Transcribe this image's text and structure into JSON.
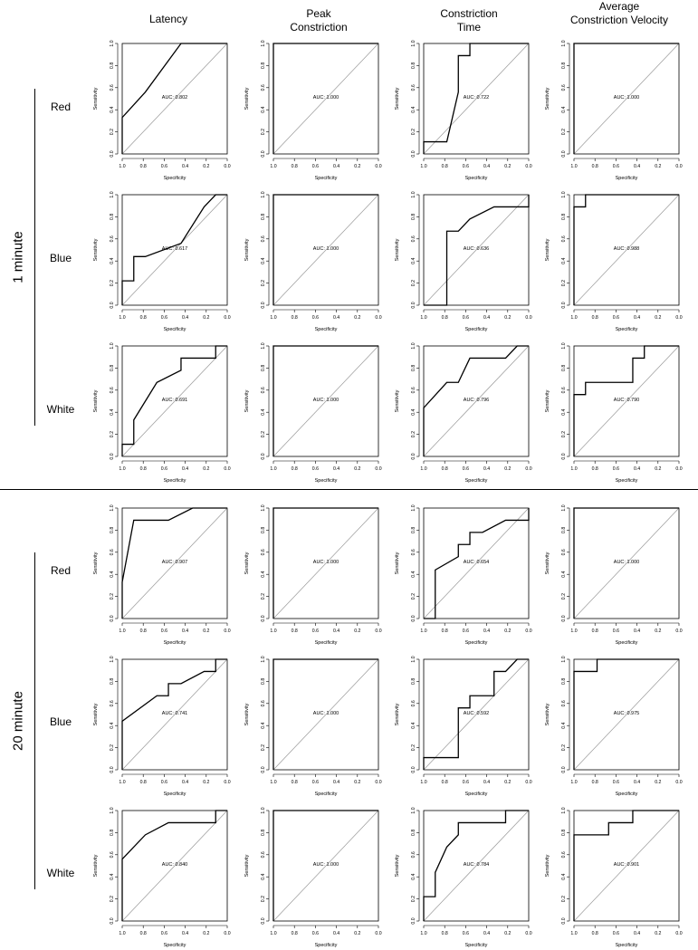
{
  "columns": [
    "Latency",
    "Peak\nConstriction",
    "Constriction\nTime",
    "Average\nConstriction Velocity"
  ],
  "groups": [
    {
      "label": "1 minute",
      "rows": [
        "Red",
        "Blue",
        "White"
      ]
    },
    {
      "label": "20 minute",
      "rows": [
        "Red",
        "Blue",
        "White"
      ]
    }
  ],
  "axis": {
    "xlabel": "Specificity",
    "ylabel": "Sensitivity",
    "xticks": [
      "1.0",
      "0.8",
      "0.6",
      "0.4",
      "0.2",
      "0.0"
    ],
    "yticks": [
      "0.0",
      "0.2",
      "0.4",
      "0.6",
      "0.8",
      "1.0"
    ]
  },
  "chart_data": [
    {
      "type": "line",
      "group": "1 minute",
      "row": "Red",
      "column": "Latency",
      "auc_label": "AUC: 0.802",
      "xlabel": "Specificity",
      "ylabel": "Sensitivity",
      "xlim": [
        1,
        0
      ],
      "ylim": [
        0,
        1
      ],
      "x": [
        1.0,
        1.0,
        0.78,
        0.44,
        0.0
      ],
      "y": [
        0.0,
        0.33,
        0.56,
        1.0,
        1.0
      ]
    },
    {
      "type": "line",
      "group": "1 minute",
      "row": "Red",
      "column": "Peak Constriction",
      "auc_label": "AUC: 1.000",
      "xlabel": "Specificity",
      "ylabel": "Sensitivity",
      "xlim": [
        1,
        0
      ],
      "ylim": [
        0,
        1
      ],
      "x": [
        1.0,
        1.0,
        0.0
      ],
      "y": [
        0.0,
        1.0,
        1.0
      ]
    },
    {
      "type": "line",
      "group": "1 minute",
      "row": "Red",
      "column": "Constriction Time",
      "auc_label": "AUC: 0.722",
      "xlabel": "Specificity",
      "ylabel": "Sensitivity",
      "xlim": [
        1,
        0
      ],
      "ylim": [
        0,
        1
      ],
      "x": [
        1.0,
        1.0,
        0.78,
        0.67,
        0.67,
        0.56,
        0.56,
        0.0
      ],
      "y": [
        0.0,
        0.11,
        0.11,
        0.56,
        0.89,
        0.89,
        1.0,
        1.0
      ]
    },
    {
      "type": "line",
      "group": "1 minute",
      "row": "Red",
      "column": "Average Constriction Velocity",
      "auc_label": "AUC: 1.000",
      "xlabel": "Specificity",
      "ylabel": "Sensitivity",
      "xlim": [
        1,
        0
      ],
      "ylim": [
        0,
        1
      ],
      "x": [
        1.0,
        1.0,
        0.0
      ],
      "y": [
        0.0,
        1.0,
        1.0
      ]
    },
    {
      "type": "line",
      "group": "1 minute",
      "row": "Blue",
      "column": "Latency",
      "auc_label": "AUC: 0.617",
      "xlabel": "Specificity",
      "ylabel": "Sensitivity",
      "xlim": [
        1,
        0
      ],
      "ylim": [
        0,
        1
      ],
      "x": [
        1.0,
        1.0,
        0.89,
        0.89,
        0.78,
        0.44,
        0.22,
        0.11,
        0.0
      ],
      "y": [
        0.0,
        0.22,
        0.22,
        0.44,
        0.44,
        0.56,
        0.89,
        1.0,
        1.0
      ]
    },
    {
      "type": "line",
      "group": "1 minute",
      "row": "Blue",
      "column": "Peak Constriction",
      "auc_label": "AUC: 1.000",
      "xlabel": "Specificity",
      "ylabel": "Sensitivity",
      "xlim": [
        1,
        0
      ],
      "ylim": [
        0,
        1
      ],
      "x": [
        1.0,
        1.0,
        0.0
      ],
      "y": [
        0.0,
        1.0,
        1.0
      ]
    },
    {
      "type": "line",
      "group": "1 minute",
      "row": "Blue",
      "column": "Constriction Time",
      "auc_label": "AUC: 0.636",
      "xlabel": "Specificity",
      "ylabel": "Sensitivity",
      "xlim": [
        1,
        0
      ],
      "ylim": [
        0,
        1
      ],
      "x": [
        1.0,
        0.78,
        0.78,
        0.67,
        0.56,
        0.33,
        0.0,
        0.0
      ],
      "y": [
        0.0,
        0.0,
        0.67,
        0.67,
        0.78,
        0.89,
        0.89,
        1.0
      ]
    },
    {
      "type": "line",
      "group": "1 minute",
      "row": "Blue",
      "column": "Average Constriction Velocity",
      "auc_label": "AUC: 0.988",
      "xlabel": "Specificity",
      "ylabel": "Sensitivity",
      "xlim": [
        1,
        0
      ],
      "ylim": [
        0,
        1
      ],
      "x": [
        1.0,
        1.0,
        0.89,
        0.89,
        0.0
      ],
      "y": [
        0.0,
        0.89,
        0.89,
        1.0,
        1.0
      ]
    },
    {
      "type": "line",
      "group": "1 minute",
      "row": "White",
      "column": "Latency",
      "auc_label": "AUC: 0.691",
      "xlabel": "Specificity",
      "ylabel": "Sensitivity",
      "xlim": [
        1,
        0
      ],
      "ylim": [
        0,
        1
      ],
      "x": [
        1.0,
        1.0,
        0.89,
        0.89,
        0.67,
        0.44,
        0.44,
        0.11,
        0.11,
        0.0
      ],
      "y": [
        0.0,
        0.11,
        0.11,
        0.33,
        0.67,
        0.78,
        0.89,
        0.89,
        1.0,
        1.0
      ]
    },
    {
      "type": "line",
      "group": "1 minute",
      "row": "White",
      "column": "Peak Constriction",
      "auc_label": "AUC: 1.000",
      "xlabel": "Specificity",
      "ylabel": "Sensitivity",
      "xlim": [
        1,
        0
      ],
      "ylim": [
        0,
        1
      ],
      "x": [
        1.0,
        1.0,
        0.0
      ],
      "y": [
        0.0,
        1.0,
        1.0
      ]
    },
    {
      "type": "line",
      "group": "1 minute",
      "row": "White",
      "column": "Constriction Time",
      "auc_label": "AUC: 0.796",
      "xlabel": "Specificity",
      "ylabel": "Sensitivity",
      "xlim": [
        1,
        0
      ],
      "ylim": [
        0,
        1
      ],
      "x": [
        1.0,
        1.0,
        0.78,
        0.67,
        0.56,
        0.22,
        0.11,
        0.0
      ],
      "y": [
        0.0,
        0.44,
        0.67,
        0.67,
        0.89,
        0.89,
        1.0,
        1.0
      ]
    },
    {
      "type": "line",
      "group": "1 minute",
      "row": "White",
      "column": "Average Constriction Velocity",
      "auc_label": "AUC: 0.790",
      "xlabel": "Specificity",
      "ylabel": "Sensitivity",
      "xlim": [
        1,
        0
      ],
      "ylim": [
        0,
        1
      ],
      "x": [
        1.0,
        1.0,
        0.89,
        0.89,
        0.44,
        0.44,
        0.33,
        0.33,
        0.0
      ],
      "y": [
        0.0,
        0.56,
        0.56,
        0.67,
        0.67,
        0.89,
        0.89,
        1.0,
        1.0
      ]
    },
    {
      "type": "line",
      "group": "20 minute",
      "row": "Red",
      "column": "Latency",
      "auc_label": "AUC: 0.907",
      "xlabel": "Specificity",
      "ylabel": "Sensitivity",
      "xlim": [
        1,
        0
      ],
      "ylim": [
        0,
        1
      ],
      "x": [
        1.0,
        1.0,
        0.89,
        0.56,
        0.33,
        0.0
      ],
      "y": [
        0.0,
        0.33,
        0.89,
        0.89,
        1.0,
        1.0
      ]
    },
    {
      "type": "line",
      "group": "20 minute",
      "row": "Red",
      "column": "Peak Constriction",
      "auc_label": "AUC: 1.000",
      "xlabel": "Specificity",
      "ylabel": "Sensitivity",
      "xlim": [
        1,
        0
      ],
      "ylim": [
        0,
        1
      ],
      "x": [
        1.0,
        1.0,
        0.0
      ],
      "y": [
        0.0,
        1.0,
        1.0
      ]
    },
    {
      "type": "line",
      "group": "20 minute",
      "row": "Red",
      "column": "Constriction Time",
      "auc_label": "AUC: 0.654",
      "xlabel": "Specificity",
      "ylabel": "Sensitivity",
      "xlim": [
        1,
        0
      ],
      "ylim": [
        0,
        1
      ],
      "x": [
        1.0,
        0.89,
        0.89,
        0.67,
        0.67,
        0.56,
        0.56,
        0.44,
        0.22,
        0.0,
        0.0
      ],
      "y": [
        0.0,
        0.0,
        0.44,
        0.56,
        0.67,
        0.67,
        0.78,
        0.78,
        0.89,
        0.89,
        1.0
      ]
    },
    {
      "type": "line",
      "group": "20 minute",
      "row": "Red",
      "column": "Average Constriction Velocity",
      "auc_label": "AUC: 1.000",
      "xlabel": "Specificity",
      "ylabel": "Sensitivity",
      "xlim": [
        1,
        0
      ],
      "ylim": [
        0,
        1
      ],
      "x": [
        1.0,
        1.0,
        0.0
      ],
      "y": [
        0.0,
        1.0,
        1.0
      ]
    },
    {
      "type": "line",
      "group": "20 minute",
      "row": "Blue",
      "column": "Latency",
      "auc_label": "AUC: 0.741",
      "xlabel": "Specificity",
      "ylabel": "Sensitivity",
      "xlim": [
        1,
        0
      ],
      "ylim": [
        0,
        1
      ],
      "x": [
        1.0,
        1.0,
        0.67,
        0.56,
        0.56,
        0.44,
        0.22,
        0.11,
        0.11,
        0.0
      ],
      "y": [
        0.0,
        0.44,
        0.67,
        0.67,
        0.78,
        0.78,
        0.89,
        0.89,
        1.0,
        1.0
      ]
    },
    {
      "type": "line",
      "group": "20 minute",
      "row": "Blue",
      "column": "Peak Constriction",
      "auc_label": "AUC: 1.000",
      "xlabel": "Specificity",
      "ylabel": "Sensitivity",
      "xlim": [
        1,
        0
      ],
      "ylim": [
        0,
        1
      ],
      "x": [
        1.0,
        1.0,
        0.0
      ],
      "y": [
        0.0,
        1.0,
        1.0
      ]
    },
    {
      "type": "line",
      "group": "20 minute",
      "row": "Blue",
      "column": "Constriction Time",
      "auc_label": "AUC: 0.592",
      "xlabel": "Specificity",
      "ylabel": "Sensitivity",
      "xlim": [
        1,
        0
      ],
      "ylim": [
        0,
        1
      ],
      "x": [
        1.0,
        1.0,
        0.67,
        0.67,
        0.56,
        0.56,
        0.33,
        0.33,
        0.22,
        0.11,
        0.0
      ],
      "y": [
        0.0,
        0.11,
        0.11,
        0.56,
        0.56,
        0.67,
        0.67,
        0.89,
        0.89,
        1.0,
        1.0
      ]
    },
    {
      "type": "line",
      "group": "20 minute",
      "row": "Blue",
      "column": "Average Constriction Velocity",
      "auc_label": "AUC: 0.975",
      "xlabel": "Specificity",
      "ylabel": "Sensitivity",
      "xlim": [
        1,
        0
      ],
      "ylim": [
        0,
        1
      ],
      "x": [
        1.0,
        1.0,
        0.78,
        0.78,
        0.0
      ],
      "y": [
        0.0,
        0.89,
        0.89,
        1.0,
        1.0
      ]
    },
    {
      "type": "line",
      "group": "20 minute",
      "row": "White",
      "column": "Latency",
      "auc_label": "AUC: 0.840",
      "xlabel": "Specificity",
      "ylabel": "Sensitivity",
      "xlim": [
        1,
        0
      ],
      "ylim": [
        0,
        1
      ],
      "x": [
        1.0,
        1.0,
        0.78,
        0.56,
        0.11,
        0.11,
        0.0
      ],
      "y": [
        0.0,
        0.56,
        0.78,
        0.89,
        0.89,
        1.0,
        1.0
      ]
    },
    {
      "type": "line",
      "group": "20 minute",
      "row": "White",
      "column": "Peak Constriction",
      "auc_label": "AUC: 1.000",
      "xlabel": "Specificity",
      "ylabel": "Sensitivity",
      "xlim": [
        1,
        0
      ],
      "ylim": [
        0,
        1
      ],
      "x": [
        1.0,
        1.0,
        0.0
      ],
      "y": [
        0.0,
        1.0,
        1.0
      ]
    },
    {
      "type": "line",
      "group": "20 minute",
      "row": "White",
      "column": "Constriction Time",
      "auc_label": "AUC: 0.784",
      "xlabel": "Specificity",
      "ylabel": "Sensitivity",
      "xlim": [
        1,
        0
      ],
      "ylim": [
        0,
        1
      ],
      "x": [
        1.0,
        1.0,
        0.89,
        0.89,
        0.78,
        0.67,
        0.67,
        0.22,
        0.22,
        0.0
      ],
      "y": [
        0.0,
        0.22,
        0.22,
        0.44,
        0.67,
        0.78,
        0.89,
        0.89,
        1.0,
        1.0
      ]
    },
    {
      "type": "line",
      "group": "20 minute",
      "row": "White",
      "column": "Average Constriction Velocity",
      "auc_label": "AUC: 0.901",
      "xlabel": "Specificity",
      "ylabel": "Sensitivity",
      "xlim": [
        1,
        0
      ],
      "ylim": [
        0,
        1
      ],
      "x": [
        1.0,
        1.0,
        0.67,
        0.67,
        0.44,
        0.44,
        0.0
      ],
      "y": [
        0.0,
        0.78,
        0.78,
        0.89,
        0.89,
        1.0,
        1.0
      ]
    }
  ]
}
